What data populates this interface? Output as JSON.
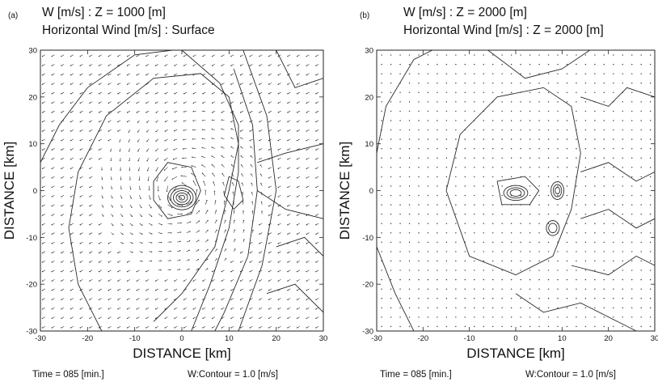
{
  "chart_data": [
    {
      "type": "contour",
      "panel_label": "(a)",
      "title_lines": [
        "W [m/s] : Z = 1000 [m]",
        "Horizontal Wind [m/s] : Surface"
      ],
      "xlabel": "DISTANCE [km]",
      "ylabel": "DISTANCE [km]",
      "xlim": [
        -30,
        30
      ],
      "ylim": [
        -30,
        30
      ],
      "xticks": [
        -30,
        -20,
        -10,
        0,
        10,
        20,
        30
      ],
      "yticks": [
        -30,
        -20,
        -10,
        0,
        10,
        20,
        30
      ],
      "grid": false,
      "footer_left": "Time = 085 [min.]",
      "footer_right": "W:Contour = 1.0 [m/s]",
      "contour_interval": 1.0,
      "vector_field": "cyclonic circulation around center near (0,0)"
    },
    {
      "type": "contour",
      "panel_label": "(b)",
      "title_lines": [
        "W [m/s] : Z = 2000 [m]",
        "Horizontal Wind [m/s] : Z = 2000 [m]"
      ],
      "xlabel": "DISTANCE [km]",
      "ylabel": "DISTANCE [km]",
      "xlim": [
        -30,
        30
      ],
      "ylim": [
        -30,
        30
      ],
      "xticks": [
        -30,
        -20,
        -10,
        0,
        10,
        20,
        30
      ],
      "yticks": [
        -30,
        -20,
        -10,
        0,
        10,
        20,
        30
      ],
      "grid": false,
      "footer_left": "Time = 085 [min.]",
      "footer_right": "W:Contour = 1.0 [m/s]",
      "contour_interval": 1.0,
      "vector_field": "weak, nearly calm"
    }
  ]
}
